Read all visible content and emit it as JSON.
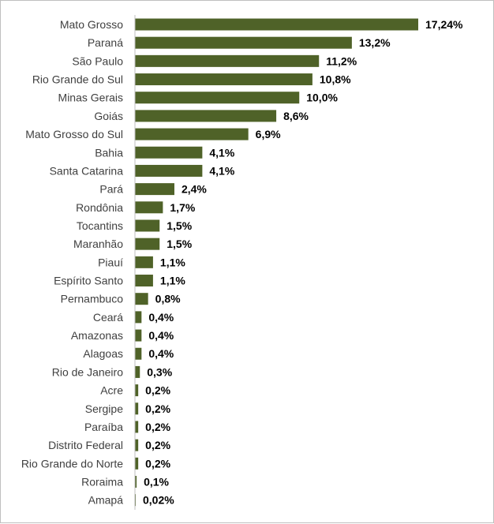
{
  "chart_data": {
    "type": "bar",
    "orientation": "horizontal",
    "categories": [
      "Mato Grosso",
      "Paraná",
      "São Paulo",
      "Rio Grande do Sul",
      "Minas Gerais",
      "Goiás",
      "Mato Grosso do Sul",
      "Bahia",
      "Santa Catarina",
      "Pará",
      "Rondônia",
      "Tocantins",
      "Maranhão",
      "Piauí",
      "Espírito Santo",
      "Pernambuco",
      "Ceará",
      "Amazonas",
      "Alagoas",
      "Rio de Janeiro",
      "Acre",
      "Sergipe",
      "Paraíba",
      "Distrito Federal",
      "Rio Grande do Norte",
      "Roraima",
      "Amapá"
    ],
    "values": [
      17.24,
      13.2,
      11.2,
      10.8,
      10.0,
      8.6,
      6.9,
      4.1,
      4.1,
      2.4,
      1.7,
      1.5,
      1.5,
      1.1,
      1.1,
      0.8,
      0.4,
      0.4,
      0.4,
      0.3,
      0.2,
      0.2,
      0.2,
      0.2,
      0.2,
      0.1,
      0.02
    ],
    "value_labels": [
      "17,24%",
      "13,2%",
      "11,2%",
      "10,8%",
      "10,0%",
      "8,6%",
      "6,9%",
      "4,1%",
      "4,1%",
      "2,4%",
      "1,7%",
      "1,5%",
      "1,5%",
      "1,1%",
      "1,1%",
      "0,8%",
      "0,4%",
      "0,4%",
      "0,4%",
      "0,3%",
      "0,2%",
      "0,2%",
      "0,2%",
      "0,2%",
      "0,2%",
      "0,1%",
      "0,02%"
    ],
    "xlim": [
      0,
      17.24
    ],
    "grid": false,
    "bar_color": "#4f6228",
    "axis_color": "#bfbfbf"
  }
}
